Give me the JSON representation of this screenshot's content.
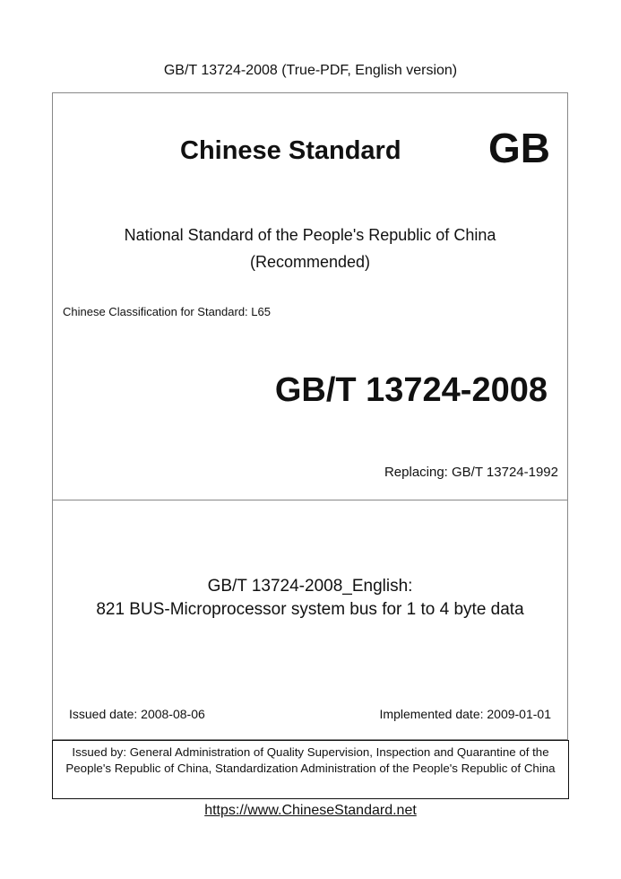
{
  "header": {
    "title": "GB/T 13724-2008 (True-PDF, English version)"
  },
  "cover": {
    "heading": "Chinese Standard",
    "logo": "GB",
    "national_line1": "National Standard of the People's Republic of China",
    "national_line2": "(Recommended)",
    "classification": "Chinese Classification for Standard: L65",
    "standard_number": "GB/T 13724-2008",
    "replacing": "Replacing: GB/T 13724-1992",
    "title_line1": "GB/T 13724-2008_English:",
    "title_line2": "821 BUS-Microprocessor system bus for 1 to 4 byte data",
    "issued_date": "Issued date: 2008-08-06",
    "implemented_date": "Implemented date: 2009-01-01",
    "issued_by": "Issued by: General Administration of Quality Supervision, Inspection and Quarantine of the People's Republic of China, Standardization Administration of the People's Republic of China"
  },
  "footer": {
    "link": "https://www.ChineseStandard.net"
  }
}
